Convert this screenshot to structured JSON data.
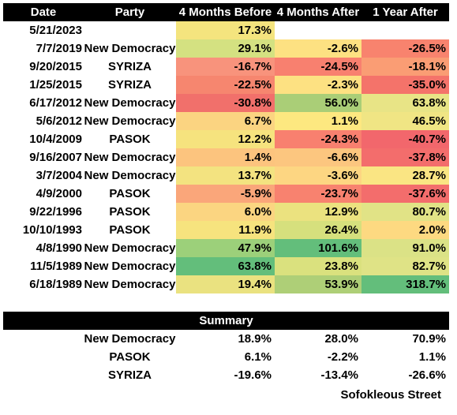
{
  "headers": {
    "date": "Date",
    "party": "Party",
    "before": "4 Months Before",
    "after": "4 Months After",
    "year": "1 Year After"
  },
  "rows": [
    {
      "date": "5/21/2023",
      "party": "",
      "before": "17.3%",
      "after": "",
      "year": "",
      "bc": "#f4e47e",
      "ac": "#ffffff",
      "yc": "#ffffff"
    },
    {
      "date": "7/7/2019",
      "party": "New Democracy",
      "before": "29.1%",
      "after": "-2.6%",
      "year": "-26.5%",
      "bc": "#d4e181",
      "ac": "#fde182",
      "yc": "#f8836e"
    },
    {
      "date": "9/20/2015",
      "party": "SYRIZA",
      "before": "-16.7%",
      "after": "-24.5%",
      "year": "-18.1%",
      "bc": "#f8937c",
      "ac": "#f8806f",
      "yc": "#fa9d74"
    },
    {
      "date": "1/25/2015",
      "party": "SYRIZA",
      "before": "-22.5%",
      "after": "-2.3%",
      "year": "-35.0%",
      "bc": "#f6866f",
      "ac": "#fde182",
      "yc": "#f4736a"
    },
    {
      "date": "6/17/2012",
      "party": "New Democracy",
      "before": "-30.8%",
      "after": "56.0%",
      "year": "63.8%",
      "bc": "#f1706b",
      "ac": "#aace77",
      "yc": "#e8e486"
    },
    {
      "date": "5/6/2012",
      "party": "New Democracy",
      "before": "6.7%",
      "after": "1.1%",
      "year": "46.5%",
      "bc": "#fbd481",
      "ac": "#fde880",
      "yc": "#f0e584"
    },
    {
      "date": "10/4/2009",
      "party": "PASOK",
      "before": "12.2%",
      "after": "-24.3%",
      "year": "-40.7%",
      "bc": "#f6e37e",
      "ac": "#f8806f",
      "yc": "#f2676c"
    },
    {
      "date": "9/16/2007",
      "party": "New Democracy",
      "before": "1.4%",
      "after": "-6.6%",
      "year": "-37.8%",
      "bc": "#fcc47e",
      "ac": "#fcc67f",
      "yc": "#f36d6c"
    },
    {
      "date": "3/7/2004",
      "party": "New Democracy",
      "before": "13.7%",
      "after": "-3.6%",
      "year": "28.7%",
      "bc": "#f3e380",
      "ac": "#fdd682",
      "yc": "#fae583"
    },
    {
      "date": "4/9/2000",
      "party": "PASOK",
      "before": "-5.9%",
      "after": "-23.7%",
      "year": "-37.6%",
      "bc": "#faa67a",
      "ac": "#f8826f",
      "yc": "#f36d6c"
    },
    {
      "date": "9/22/1996",
      "party": "PASOK",
      "before": "6.0%",
      "after": "12.9%",
      "year": "80.7%",
      "bc": "#fbd581",
      "ac": "#ebe27f",
      "yc": "#e1e386"
    },
    {
      "date": "10/10/1993",
      "party": "PASOK",
      "before": "11.9%",
      "after": "26.4%",
      "year": "2.0%",
      "bc": "#f6e37e",
      "ac": "#d6e07d",
      "yc": "#fdd981"
    },
    {
      "date": "4/8/1990",
      "party": "New Democracy",
      "before": "47.9%",
      "after": "101.6%",
      "year": "91.0%",
      "bc": "#9cd07a",
      "ac": "#63be7b",
      "yc": "#dbe286"
    },
    {
      "date": "11/5/1989",
      "party": "New Democracy",
      "before": "63.8%",
      "after": "23.8%",
      "year": "82.7%",
      "bc": "#63be7b",
      "ac": "#dae17e",
      "yc": "#dfe386"
    },
    {
      "date": "6/18/1989",
      "party": "New Democracy",
      "before": "19.4%",
      "after": "53.9%",
      "year": "318.7%",
      "bc": "#eae280",
      "ac": "#aecf77",
      "yc": "#63be7b"
    }
  ],
  "summary": {
    "title": "Summary",
    "rows": [
      {
        "party": "New Democracy",
        "before": "18.9%",
        "after": "28.0%",
        "year": "70.9%"
      },
      {
        "party": "PASOK",
        "before": "6.1%",
        "after": "-2.2%",
        "year": "1.1%"
      },
      {
        "party": "SYRIZA",
        "before": "-19.6%",
        "after": "-13.4%",
        "year": "-26.6%"
      }
    ]
  },
  "credit": "Sofokleous Street"
}
